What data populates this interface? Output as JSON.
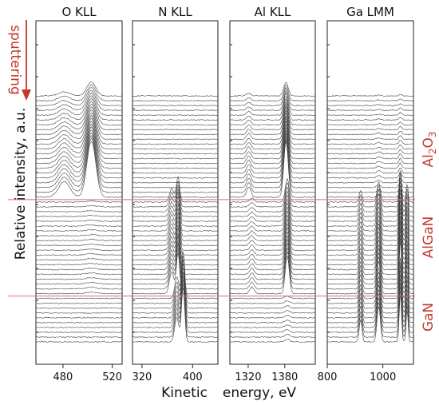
{
  "chart_data": {
    "type": "line",
    "ylabel": "Relative intensity, a.u.",
    "xlabel_left": "Kinetic",
    "xlabel_right": "energy, eV",
    "arrow_label": "sputtering",
    "colors": {
      "accent": "#c0392b",
      "traces": "#333333"
    },
    "grid": false,
    "legend": "none",
    "layers": [
      {
        "name": "Al2O3",
        "label_main": "Al",
        "label_sub": "2",
        "label_end": "O",
        "label_sub2": "3"
      },
      {
        "name": "AlGaN",
        "label_main": "AlGaN"
      },
      {
        "name": "GaN",
        "label_main": "GaN"
      }
    ],
    "panels": [
      {
        "title": "O KLL",
        "xlim": [
          458,
          528
        ],
        "ticks": [
          {
            "v": 480,
            "label": "480"
          },
          {
            "v": 520,
            "label": "520"
          }
        ],
        "peaks_by_layer": {
          "Al2O3": [
            {
              "x": 503,
              "h": 1.0,
              "w": 3.6
            },
            {
              "x": 481,
              "h": 0.28,
              "w": 4.5
            }
          ],
          "AlGaN": [
            {
              "x": 503,
              "h": 0.03,
              "w": 4
            }
          ],
          "GaN": []
        }
      },
      {
        "title": "N KLL",
        "xlim": [
          305,
          440
        ],
        "ticks": [
          {
            "v": 320,
            "label": "320"
          },
          {
            "v": 400,
            "label": "400"
          }
        ],
        "peaks_by_layer": {
          "Al2O3": [],
          "AlGaN": [
            {
              "x": 377,
              "h": 0.75,
              "w": 2.6
            },
            {
              "x": 367,
              "h": 0.4,
              "w": 3.5
            }
          ],
          "GaN": [
            {
              "x": 385,
              "h": 1.0,
              "w": 2.5
            },
            {
              "x": 375,
              "h": 0.45,
              "w": 3.2
            }
          ]
        }
      },
      {
        "title": "Al KLL",
        "xlim": [
          1290,
          1430
        ],
        "ticks": [
          {
            "v": 1320,
            "label": "1320"
          },
          {
            "v": 1380,
            "label": "1380"
          }
        ],
        "peaks_by_layer": {
          "Al2O3": [
            {
              "x": 1382,
              "h": 1.0,
              "w": 3.6
            },
            {
              "x": 1321,
              "h": 0.18,
              "w": 3.5
            }
          ],
          "AlGaN": [
            {
              "x": 1384,
              "h": 0.7,
              "w": 3.2
            },
            {
              "x": 1326,
              "h": 0.12,
              "w": 3.5
            }
          ],
          "GaN": [
            {
              "x": 1384,
              "h": 0.05,
              "w": 4
            }
          ]
        }
      },
      {
        "title": "Ga LMM",
        "xlim": [
          800,
          1110
        ],
        "ticks": [
          {
            "v": 800,
            "label": "800"
          },
          {
            "v": 1000,
            "label": "1000"
          }
        ],
        "peaks_by_layer": {
          "Al2O3": [
            {
              "x": 1063,
              "h": 0.12,
              "w": 5
            },
            {
              "x": 985,
              "h": 0.05,
              "w": 7
            }
          ],
          "AlGaN": [
            {
              "x": 1063,
              "h": 1.0,
              "w": 4
            },
            {
              "x": 1087,
              "h": 0.55,
              "w": 3.5
            },
            {
              "x": 985,
              "h": 0.6,
              "w": 6
            },
            {
              "x": 920,
              "h": 0.35,
              "w": 5
            }
          ],
          "GaN": [
            {
              "x": 1063,
              "h": 0.9,
              "w": 4
            },
            {
              "x": 1087,
              "h": 0.6,
              "w": 3.5
            },
            {
              "x": 985,
              "h": 0.65,
              "w": 6
            },
            {
              "x": 920,
              "h": 0.4,
              "w": 5
            }
          ]
        }
      }
    ],
    "n_spectra": 52,
    "layer_boundaries_spectrum_index": [
      22,
      42
    ]
  }
}
